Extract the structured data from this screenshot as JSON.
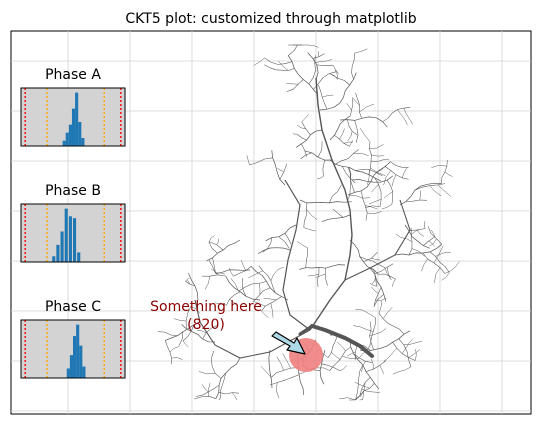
{
  "title": "CKT5 plot: customized through matplotlib",
  "annotation": {
    "line1": "Something here",
    "line2": "(820)",
    "color": "#8b0000",
    "marker_color": "#f08080",
    "arrow_color": "#add8e6"
  },
  "colors": {
    "network": "#555555",
    "feeder": "#555555",
    "grid": "#d3d3d3",
    "inset_bg": "#d3d3d3",
    "bars": "#1f77b4",
    "limit_red": "#ff0000",
    "limit_orange": "#ffa500"
  },
  "chart_data": [
    {
      "type": "bar",
      "title": "Phase A",
      "note": "histogram inset, no axis ticks",
      "bins_rel": [
        0.4,
        0.43,
        0.46,
        0.49,
        0.52,
        0.55,
        0.58
      ],
      "values": [
        2,
        5,
        8,
        14,
        20,
        9,
        3
      ]
    },
    {
      "type": "bar",
      "title": "Phase B",
      "note": "histogram inset, no axis ticks",
      "bins_rel": [
        0.3,
        0.34,
        0.38,
        0.42,
        0.46,
        0.5,
        0.54
      ],
      "values": [
        3,
        9,
        16,
        28,
        24,
        23,
        5
      ]
    },
    {
      "type": "bar",
      "title": "Phase C",
      "note": "histogram inset, no axis ticks",
      "bins_rel": [
        0.44,
        0.47,
        0.5,
        0.53,
        0.56,
        0.59
      ],
      "values": [
        5,
        12,
        22,
        28,
        17,
        6
      ]
    },
    {
      "type": "line",
      "title": "CKT5 plot: customized through matplotlib",
      "note": "circuit network map on gridded axes, no tick labels",
      "grid": true
    }
  ]
}
